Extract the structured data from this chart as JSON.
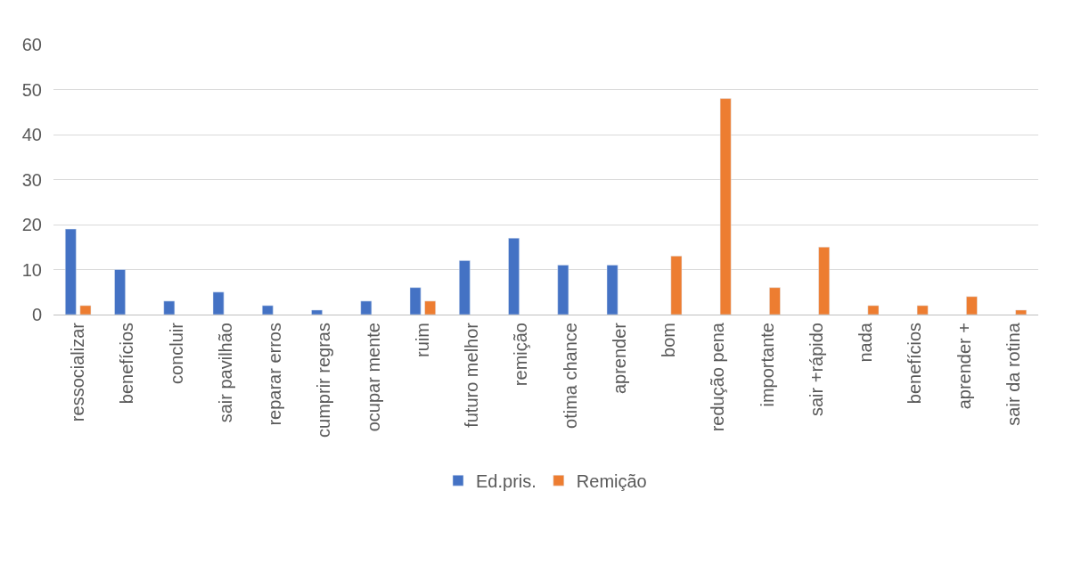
{
  "chart_data": {
    "type": "bar",
    "categories": [
      "ressocializar",
      "benefícios",
      "concluir",
      "sair pavilhão",
      "reparar erros",
      "cumprir regras",
      "ocupar mente",
      "ruim",
      "futuro melhor",
      "remição",
      "otima chance",
      "aprender",
      "bom",
      "redução pena",
      "importante",
      "sair +rápido",
      "nada",
      "benefícios",
      "aprender +",
      "sair da rotina"
    ],
    "series": [
      {
        "name": "Ed.pris.",
        "color": "#4472c4",
        "values": [
          19,
          10,
          3,
          5,
          2,
          1,
          3,
          6,
          12,
          17,
          11,
          11,
          null,
          null,
          null,
          null,
          null,
          null,
          null,
          null
        ]
      },
      {
        "name": "Remição",
        "color": "#ed7d31",
        "values": [
          2,
          null,
          null,
          null,
          null,
          null,
          null,
          3,
          null,
          null,
          null,
          null,
          13,
          48,
          6,
          15,
          2,
          2,
          4,
          1
        ]
      }
    ],
    "ylim": [
      0,
      60
    ],
    "yticks": [
      0,
      10,
      20,
      30,
      40,
      50,
      60
    ],
    "grid": "y",
    "legend": "bottom"
  }
}
